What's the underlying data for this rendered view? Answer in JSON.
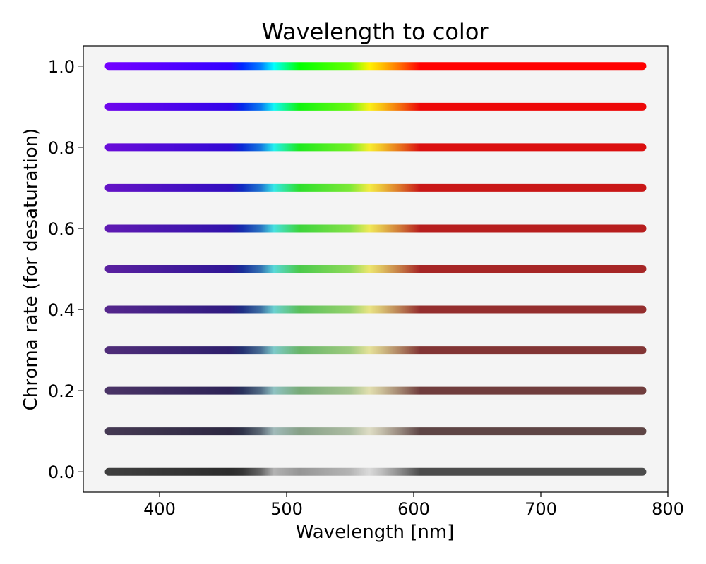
{
  "chart_data": {
    "type": "scatter",
    "title": "Wavelength to color",
    "xlabel": "Wavelength [nm]",
    "ylabel": "Chroma rate (for desaturation)",
    "xlim": [
      340,
      800
    ],
    "ylim": [
      -0.05,
      1.05
    ],
    "x_ticks": [
      400,
      500,
      600,
      700,
      800
    ],
    "y_ticks": [
      0.0,
      0.2,
      0.4,
      0.6,
      0.8,
      1.0
    ],
    "x_tick_labels": [
      "400",
      "500",
      "600",
      "700",
      "800"
    ],
    "y_tick_labels": [
      "0.0",
      "0.2",
      "0.4",
      "0.6",
      "0.8",
      "1.0"
    ],
    "wavelength_range": [
      360,
      780
    ],
    "chroma_rates": [
      0.0,
      0.1,
      0.2,
      0.3,
      0.4,
      0.5,
      0.6,
      0.7,
      0.8,
      0.9,
      1.0
    ],
    "grid": false,
    "legend": "none",
    "colors": {
      "plot_background": "#f4f4f4",
      "figure_background": "#ffffff",
      "axes": "#000000"
    }
  }
}
